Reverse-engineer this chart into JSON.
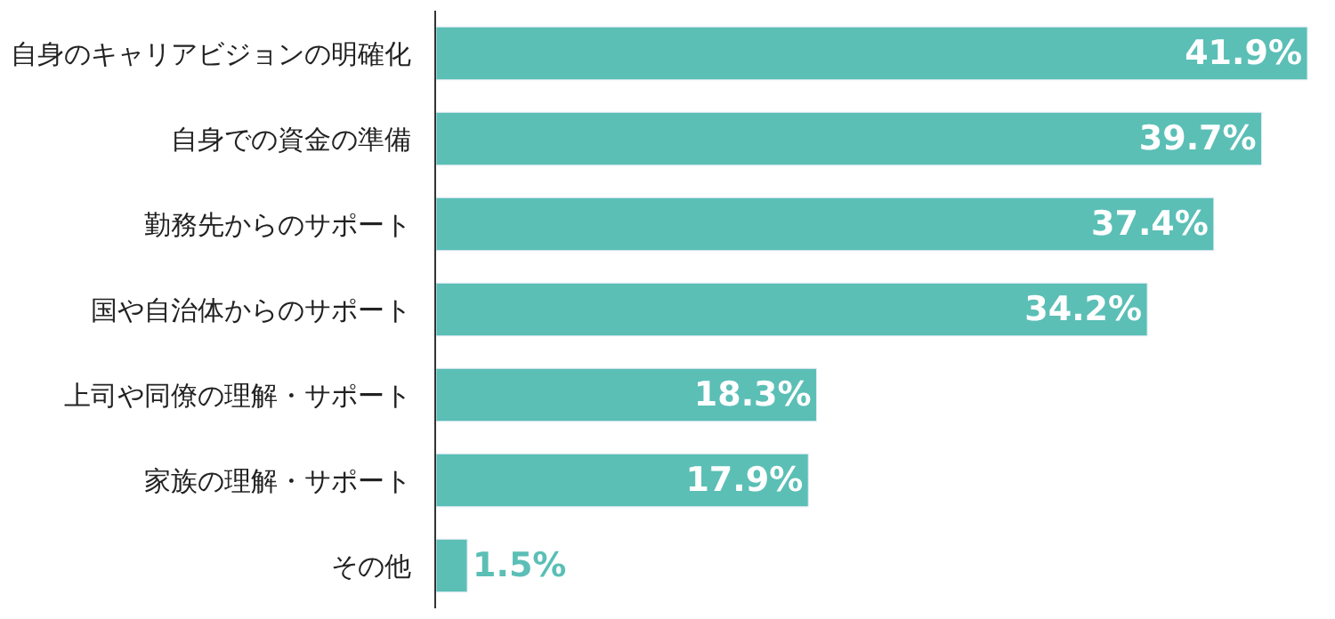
{
  "chart_data": {
    "type": "bar",
    "orientation": "horizontal",
    "categories": [
      "自身のキャリアビジョンの明確化",
      "自身での資金の準備",
      "勤務先からのサポート",
      "国や自治体からのサポート",
      "上司や同僚の理解・サポート",
      "家族の理解・サポート",
      "その他"
    ],
    "values": [
      41.9,
      39.7,
      37.4,
      34.2,
      18.3,
      17.9,
      1.5
    ],
    "value_labels": [
      "41.9%",
      "39.7%",
      "37.4%",
      "34.2%",
      "18.3%",
      "17.9%",
      "1.5%"
    ],
    "color": "#5bbfb6",
    "xlim": [
      0,
      42.2
    ],
    "tick_labels": "y",
    "legend": false
  }
}
